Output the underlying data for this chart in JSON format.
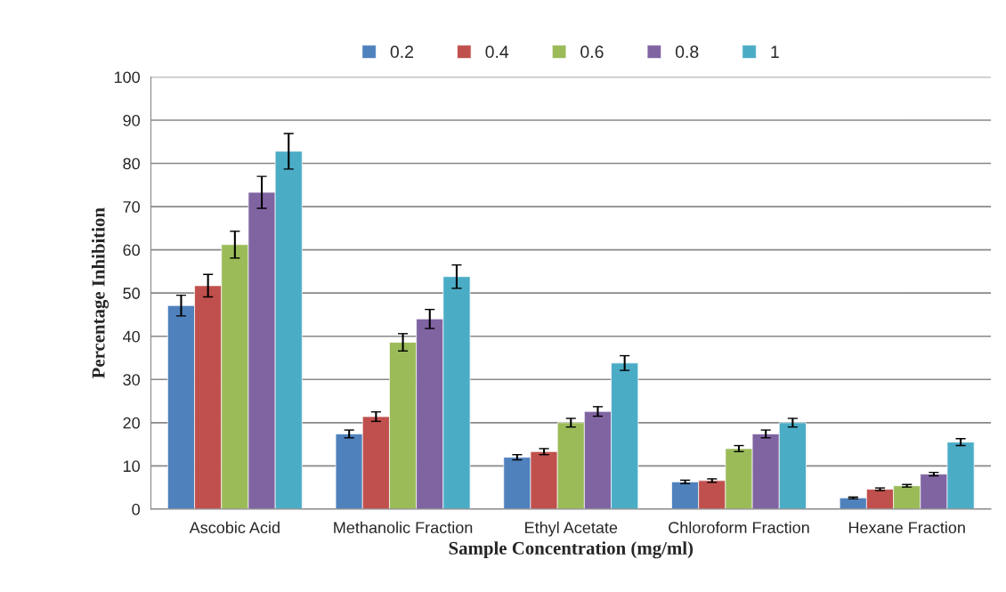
{
  "chart_data": {
    "type": "bar",
    "xlabel": "Sample Concentration (mg/ml)",
    "ylabel": "Percentage Inhibition",
    "categories": [
      "Ascobic Acid",
      "Methanolic Fraction",
      "Ethyl Acetate",
      "Chloroform Fraction",
      "Hexane Fraction"
    ],
    "series": [
      {
        "name": "0.2",
        "color": "#4f81bd",
        "values": [
          47.1,
          17.4,
          12.0,
          6.3,
          2.6
        ],
        "errors": [
          2.4,
          0.9,
          0.6,
          0.4,
          0.2
        ]
      },
      {
        "name": "0.4",
        "color": "#c0504d",
        "values": [
          51.7,
          21.4,
          13.3,
          6.6,
          4.6
        ],
        "errors": [
          2.6,
          1.1,
          0.7,
          0.4,
          0.3
        ]
      },
      {
        "name": "0.6",
        "color": "#9bbb59",
        "values": [
          61.2,
          38.6,
          20.0,
          14.0,
          5.4
        ],
        "errors": [
          3.1,
          2.0,
          1.0,
          0.7,
          0.3
        ]
      },
      {
        "name": "0.8",
        "color": "#8064a2",
        "values": [
          73.3,
          44.0,
          22.6,
          17.4,
          8.1
        ],
        "errors": [
          3.7,
          2.2,
          1.1,
          0.9,
          0.4
        ]
      },
      {
        "name": "1",
        "color": "#4bacc6",
        "values": [
          82.8,
          53.8,
          33.8,
          20.0,
          15.5
        ],
        "errors": [
          4.1,
          2.7,
          1.7,
          1.0,
          0.8
        ]
      }
    ],
    "ylim": [
      0,
      100
    ],
    "yticks": [
      0,
      10,
      20,
      30,
      40,
      50,
      60,
      70,
      80,
      90,
      100
    ],
    "grid": "y",
    "legend": "top"
  }
}
